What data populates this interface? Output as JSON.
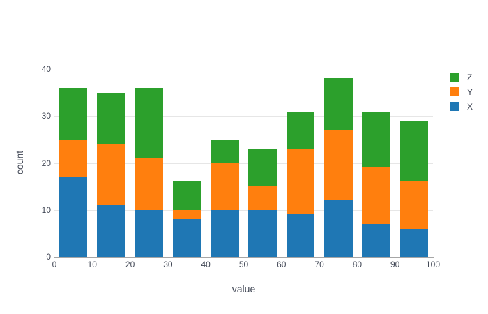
{
  "chart_data": {
    "type": "bar",
    "stacked": true,
    "title": "",
    "xlabel": "value",
    "ylabel": "count",
    "bin_centers": [
      5,
      15,
      25,
      35,
      45,
      55,
      65,
      75,
      85,
      95
    ],
    "bin_width": 10,
    "series": [
      {
        "name": "X",
        "color": "#1f77b4",
        "values": [
          17,
          11,
          10,
          8,
          10,
          10,
          9,
          12,
          7,
          6
        ]
      },
      {
        "name": "Y",
        "color": "#ff7f0e",
        "values": [
          8,
          13,
          11,
          2,
          10,
          5,
          14,
          15,
          12,
          10
        ]
      },
      {
        "name": "Z",
        "color": "#2ca02c",
        "values": [
          11,
          11,
          15,
          6,
          5,
          8,
          8,
          11,
          12,
          13
        ]
      }
    ],
    "stack_totals": [
      36,
      35,
      36,
      16,
      25,
      23,
      31,
      38,
      31,
      29
    ],
    "xlim": [
      0,
      100
    ],
    "ylim": [
      0,
      40
    ],
    "x_ticks": [
      0,
      10,
      20,
      30,
      40,
      50,
      60,
      70,
      80,
      90,
      100
    ],
    "y_ticks": [
      0,
      10,
      20,
      30,
      40
    ],
    "y_gridlines": [
      10,
      20,
      30
    ],
    "legend": {
      "position": "top-right-outside",
      "entries": [
        "Z",
        "Y",
        "X"
      ]
    }
  },
  "colors": {
    "background": "#ffffff",
    "gridline": "#e6e6e6",
    "axis_line": "#a6a6a6",
    "text": "#414755",
    "series_x": "#1f77b4",
    "series_y": "#ff7f0e",
    "series_z": "#2ca02c"
  }
}
